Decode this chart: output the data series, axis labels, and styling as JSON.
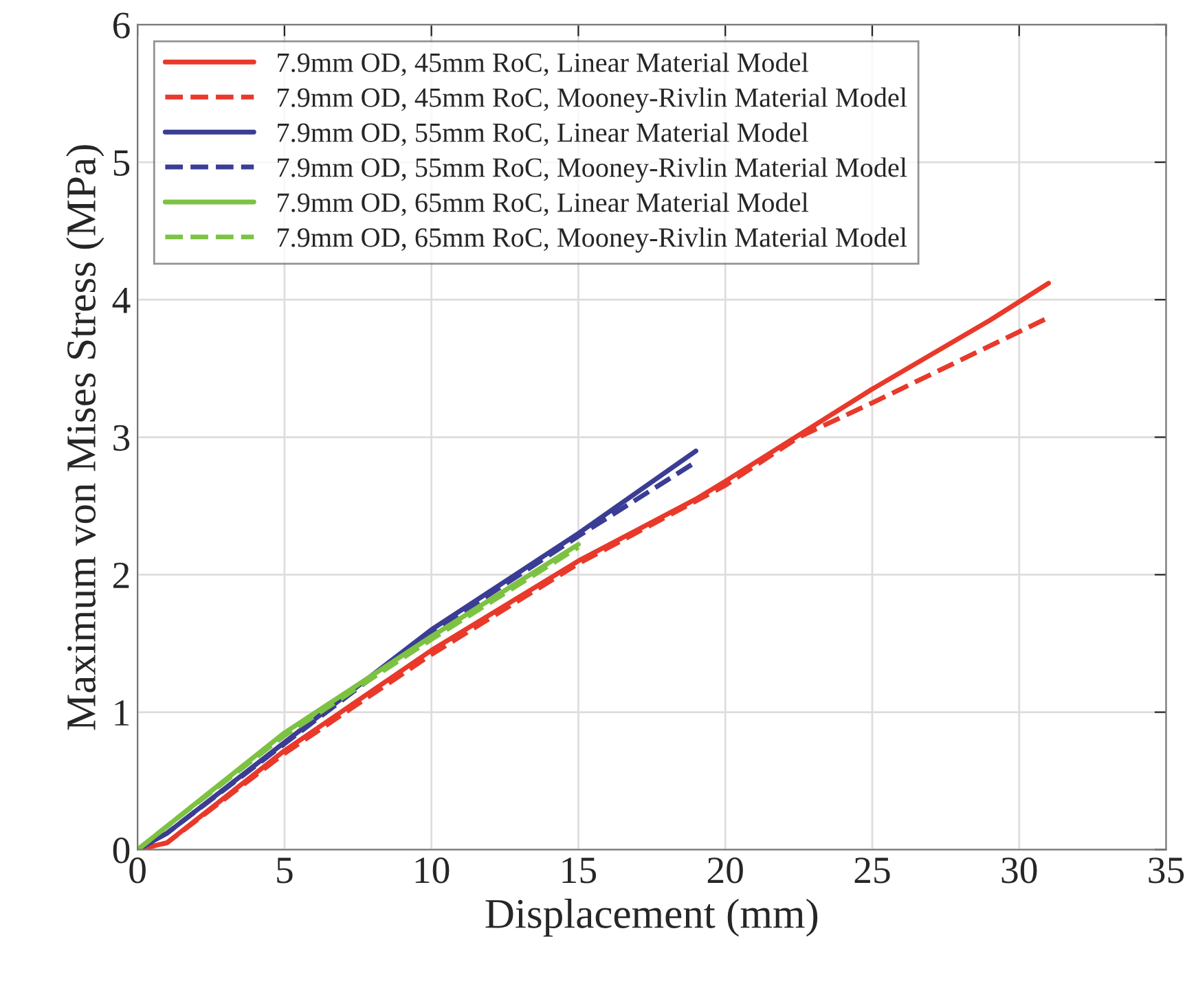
{
  "chart_data": {
    "type": "line",
    "xlabel": "Displacement (mm)",
    "ylabel": "Maximum von Mises Stress (MPa)",
    "xlim": [
      0,
      35
    ],
    "ylim": [
      0,
      6
    ],
    "xticks": [
      0,
      5,
      10,
      15,
      20,
      25,
      30,
      35
    ],
    "yticks": [
      0,
      1,
      2,
      3,
      4,
      5,
      6
    ],
    "grid": true,
    "legend": "top left",
    "marker": "none",
    "series": [
      {
        "name": "7.9mm OD, 45mm RoC, Linear Material Model",
        "color": "#e8392b",
        "line_style": "solid",
        "x": [
          0,
          1,
          5,
          10,
          15,
          19,
          20,
          25,
          29,
          31
        ],
        "values": [
          0,
          0.05,
          0.72,
          1.45,
          2.1,
          2.55,
          2.68,
          3.35,
          3.85,
          4.12
        ]
      },
      {
        "name": "7.9mm OD, 45mm RoC, Mooney-Rivlin Material Model",
        "color": "#e8392b",
        "line_style": "dashed",
        "x": [
          0,
          1,
          5,
          10,
          15,
          20,
          22.5,
          25,
          31
        ],
        "values": [
          0,
          0.05,
          0.7,
          1.42,
          2.08,
          2.65,
          3.0,
          3.25,
          3.87
        ]
      },
      {
        "name": "7.9mm OD, 55mm RoC, Linear Material Model",
        "color": "#3b3d95",
        "line_style": "solid",
        "x": [
          0,
          1,
          5,
          10,
          15,
          19
        ],
        "values": [
          0,
          0.12,
          0.78,
          1.6,
          2.3,
          2.9
        ]
      },
      {
        "name": "7.9mm OD, 55mm RoC, Mooney-Rivlin Material Model",
        "color": "#3b3d95",
        "line_style": "dashed",
        "x": [
          0,
          1,
          5,
          10,
          15,
          19
        ],
        "values": [
          0,
          0.12,
          0.77,
          1.58,
          2.28,
          2.82
        ]
      },
      {
        "name": "7.9mm OD, 65mm RoC, Linear Material Model",
        "color": "#7dc242",
        "line_style": "solid",
        "x": [
          0,
          1,
          5,
          10,
          15
        ],
        "values": [
          0,
          0.17,
          0.85,
          1.55,
          2.22
        ]
      },
      {
        "name": "7.9mm OD, 65mm RoC, Mooney-Rivlin Material Model",
        "color": "#7dc242",
        "line_style": "dashed",
        "x": [
          0,
          1,
          5,
          10,
          15
        ],
        "values": [
          0,
          0.17,
          0.83,
          1.53,
          2.2
        ]
      }
    ]
  }
}
